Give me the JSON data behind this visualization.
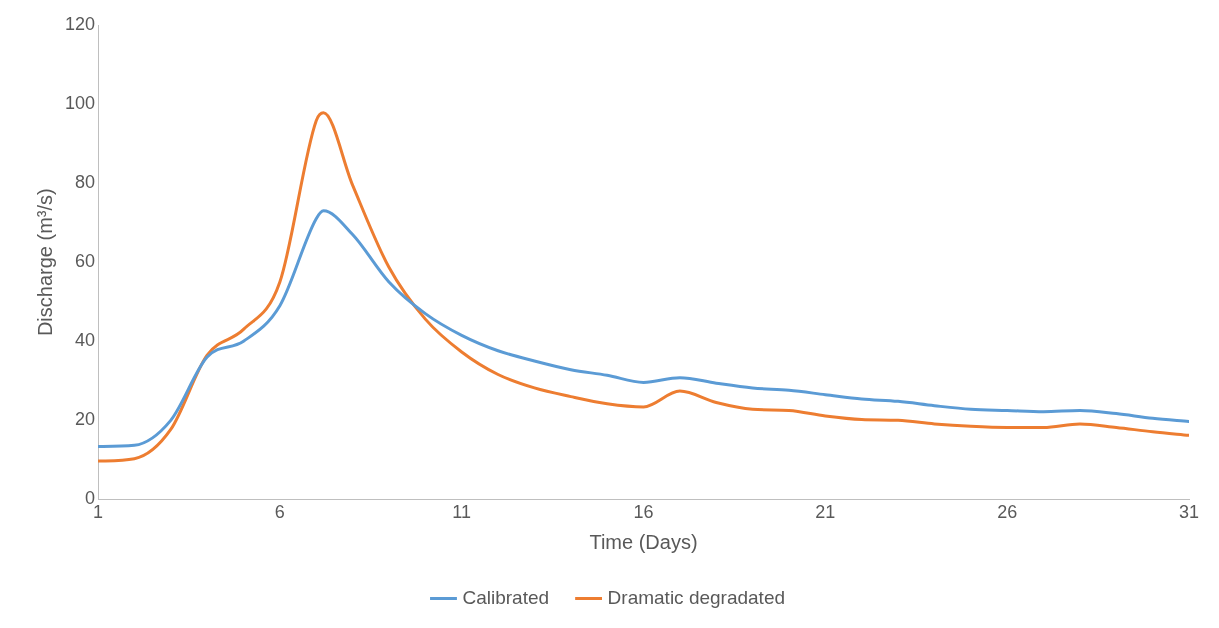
{
  "chart_data": {
    "type": "line",
    "xlabel": "Time (Days)",
    "ylabel": "Discharge (m³/s)",
    "xlim": [
      1,
      31
    ],
    "xticks": [
      1,
      6,
      11,
      16,
      21,
      26,
      31
    ],
    "ylim": [
      0,
      120
    ],
    "yticks": [
      0,
      20,
      40,
      60,
      80,
      100,
      120
    ],
    "grid": false,
    "legend": "bottom",
    "marker": "none",
    "line_style": "solid",
    "series": [
      {
        "name": "Calibrated",
        "color": "#5b9bd5",
        "x": [
          1,
          2,
          3,
          4,
          5,
          6,
          7,
          7.2,
          8,
          9,
          10,
          11,
          12,
          13,
          14,
          15,
          16,
          17,
          18,
          19,
          20,
          21,
          22,
          23,
          24,
          25,
          26,
          27,
          28,
          29,
          30,
          31
        ],
        "values": [
          13.4,
          13.7,
          20,
          36,
          40,
          49,
          71,
          73,
          67,
          55,
          47,
          41.5,
          37.6,
          35,
          32.8,
          31.4,
          29.6,
          30.8,
          29.4,
          28.2,
          27.6,
          26.5,
          25.4,
          24.8,
          23.7,
          22.8,
          22.5,
          22.2,
          22.5,
          21.7,
          20.5,
          19.7
        ]
      },
      {
        "name": "Dramatic degradated",
        "color": "#ed7d31",
        "x": [
          1,
          2,
          3,
          4,
          5,
          6,
          7,
          7.2,
          8,
          9,
          10,
          11,
          12,
          13,
          14,
          15,
          16,
          17,
          18,
          19,
          20,
          21,
          22,
          23,
          24,
          25,
          26,
          27,
          28,
          29,
          30,
          31
        ],
        "values": [
          9.7,
          10.3,
          17.7,
          36.5,
          43,
          55,
          95.8,
          97.8,
          79.5,
          58.7,
          45.6,
          37.3,
          31.6,
          28.2,
          26,
          24.2,
          23.4,
          27.4,
          24.5,
          22.8,
          22.5,
          21.1,
          20.2,
          20,
          19.1,
          18.5,
          18.2,
          18.2,
          19.1,
          18.2,
          17.1,
          16.2
        ]
      }
    ]
  }
}
